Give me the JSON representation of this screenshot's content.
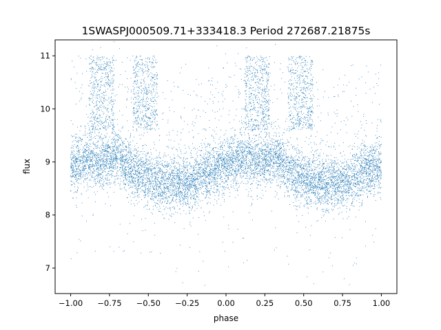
{
  "chart_data": {
    "type": "scatter",
    "title": "1SWASPJ000509.71+333418.3 Period 272687.21875s",
    "xlabel": "phase",
    "ylabel": "flux",
    "xlim": [
      -1.1,
      1.1
    ],
    "ylim": [
      6.52,
      11.3
    ],
    "xticks": [
      -1.0,
      -0.75,
      -0.5,
      -0.25,
      0.0,
      0.25,
      0.5,
      0.75,
      1.0
    ],
    "xtick_labels": [
      "−1.00",
      "−0.75",
      "−0.50",
      "−0.25",
      "0.00",
      "0.25",
      "0.50",
      "0.75",
      "1.00"
    ],
    "yticks": [
      7,
      8,
      9,
      10,
      11
    ],
    "ytick_labels": [
      "7",
      "8",
      "9",
      "10",
      "11"
    ],
    "grid": false,
    "marker_color": "#1f77b4",
    "series": [
      {
        "description_points": "approximate phase-folded light curve, mirrored over phase [-1,1]",
        "x": [
          -1.0,
          -0.95,
          -0.9,
          -0.85,
          -0.8,
          -0.75,
          -0.7,
          -0.65,
          -0.6,
          -0.55,
          -0.5,
          -0.45,
          -0.4,
          -0.35,
          -0.3,
          -0.25,
          -0.2,
          -0.15,
          -0.1,
          -0.05,
          0.0,
          0.05,
          0.1,
          0.15,
          0.2,
          0.25,
          0.3,
          0.35,
          0.4,
          0.45,
          0.5,
          0.55,
          0.6,
          0.65,
          0.7,
          0.75,
          0.8,
          0.85,
          0.9,
          0.95,
          1.0
        ],
        "y": [
          8.95,
          9.0,
          9.05,
          9.05,
          9.0,
          9.05,
          9.1,
          9.0,
          8.85,
          8.75,
          8.7,
          8.65,
          8.6,
          8.6,
          8.6,
          8.6,
          8.65,
          8.75,
          8.85,
          8.9,
          8.95,
          9.0,
          9.05,
          9.05,
          9.0,
          9.05,
          9.1,
          9.0,
          8.85,
          8.75,
          8.7,
          8.65,
          8.6,
          8.6,
          8.6,
          8.6,
          8.65,
          8.75,
          8.85,
          8.9,
          8.95
        ]
      }
    ]
  }
}
